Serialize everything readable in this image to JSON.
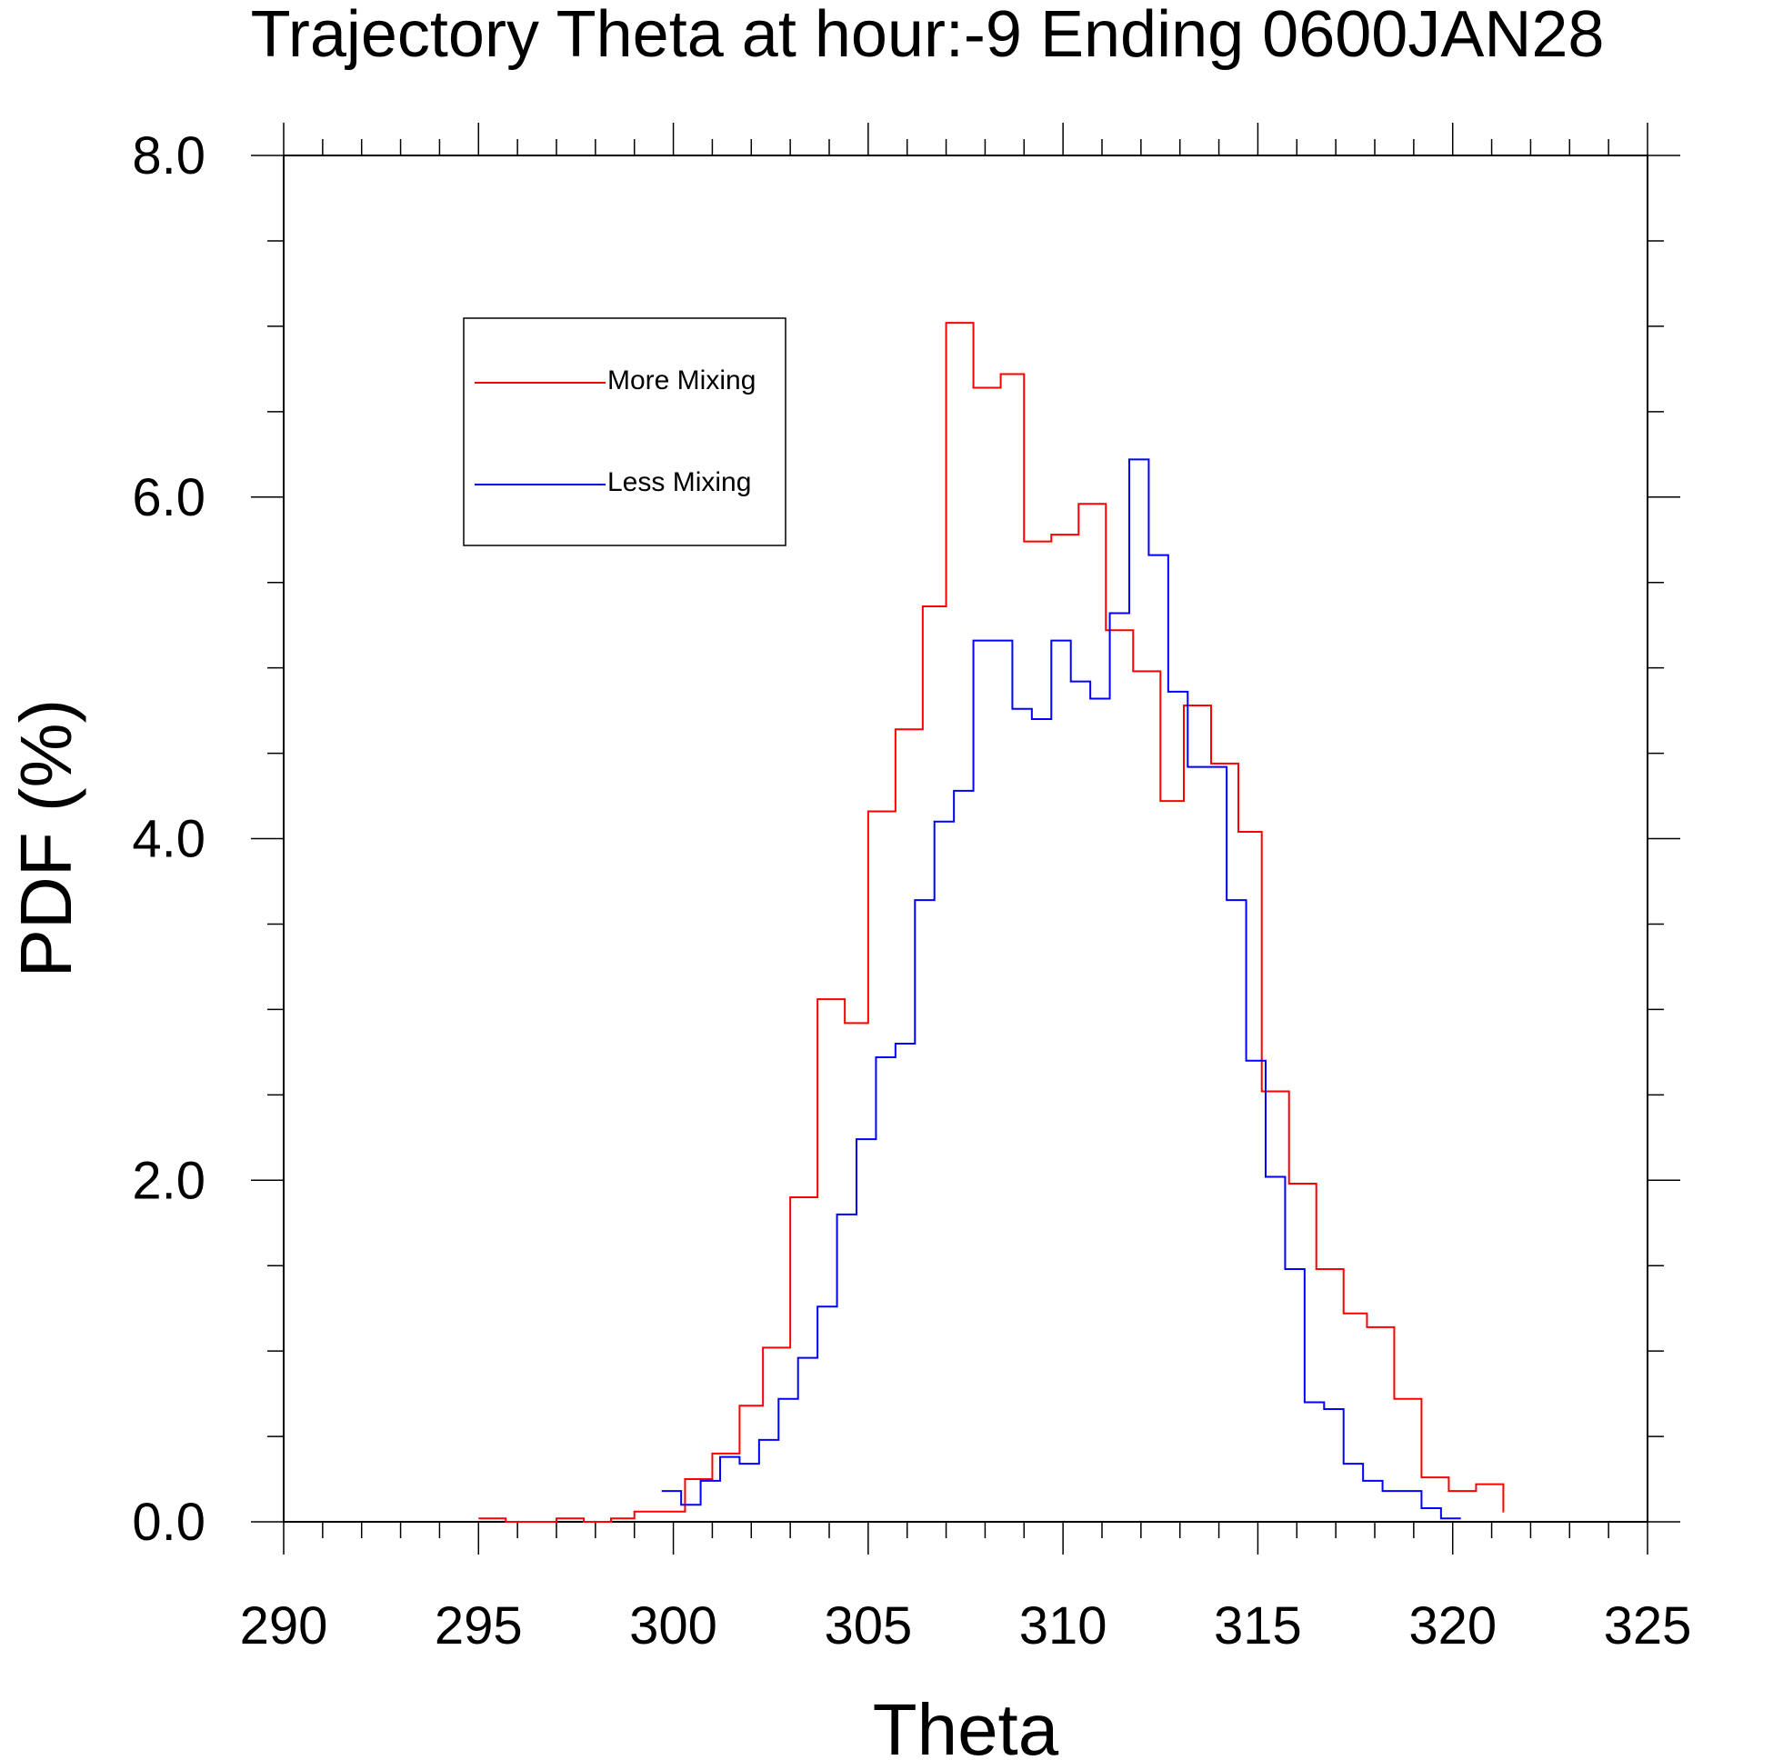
{
  "chart_data": {
    "type": "line",
    "step": true,
    "title": "Trajectory Theta at hour:-9 Ending 0600JAN28",
    "xlabel": "Theta",
    "ylabel": "PDF (%)",
    "xlim": [
      290,
      325
    ],
    "ylim": [
      0,
      8
    ],
    "xticks": [
      "290",
      "295",
      "300",
      "305",
      "310",
      "315",
      "320",
      "325"
    ],
    "yticks": [
      "0.0",
      "2.0",
      "4.0",
      "6.0",
      "8.0"
    ],
    "grid": false,
    "legend_position": "top-left",
    "series": [
      {
        "name": "More Mixing",
        "color": "#ff0000",
        "x": [
          295.0,
          295.7,
          296.4,
          297.0,
          297.7,
          298.4,
          299.0,
          299.7,
          300.3,
          301.0,
          301.7,
          302.3,
          303.0,
          303.7,
          304.4,
          305.0,
          305.7,
          306.4,
          307.0,
          307.7,
          308.4,
          309.0,
          309.7,
          310.4,
          311.1,
          311.8,
          312.5,
          313.1,
          313.8,
          314.5,
          315.1,
          315.8,
          316.5,
          317.2,
          317.8,
          318.5,
          319.2,
          319.9,
          320.6,
          321.3
        ],
        "y": [
          0.02,
          0.0,
          0.0,
          0.02,
          0.0,
          0.02,
          0.06,
          0.06,
          0.25,
          0.4,
          0.68,
          1.02,
          1.9,
          3.06,
          2.92,
          4.16,
          4.64,
          5.36,
          7.02,
          6.64,
          6.72,
          5.74,
          5.78,
          5.96,
          5.22,
          4.98,
          4.22,
          4.78,
          4.44,
          4.04,
          2.52,
          1.98,
          1.48,
          1.22,
          1.14,
          0.72,
          0.26,
          0.18,
          0.22,
          0.06
        ]
      },
      {
        "name": "Less Mixing",
        "color": "#0000ff",
        "x": [
          299.7,
          300.2,
          300.7,
          301.2,
          301.7,
          302.2,
          302.7,
          303.2,
          303.7,
          304.2,
          304.7,
          305.2,
          305.7,
          306.2,
          306.7,
          307.2,
          307.7,
          308.2,
          308.7,
          309.2,
          309.7,
          310.2,
          310.7,
          311.2,
          311.7,
          312.2,
          312.7,
          313.2,
          313.7,
          314.2,
          314.7,
          315.2,
          315.7,
          316.2,
          316.7,
          317.2,
          317.7,
          318.2,
          318.7,
          319.2,
          319.7,
          320.2
        ],
        "y": [
          0.18,
          0.1,
          0.24,
          0.38,
          0.34,
          0.48,
          0.72,
          0.96,
          1.26,
          1.8,
          2.24,
          2.72,
          2.8,
          3.64,
          4.1,
          4.28,
          5.16,
          5.16,
          4.76,
          4.7,
          5.16,
          4.92,
          4.82,
          5.32,
          6.22,
          5.66,
          4.86,
          4.42,
          4.42,
          3.64,
          2.7,
          2.02,
          1.48,
          0.7,
          0.66,
          0.34,
          0.24,
          0.18,
          0.18,
          0.08,
          0.02,
          0.02
        ]
      }
    ]
  }
}
